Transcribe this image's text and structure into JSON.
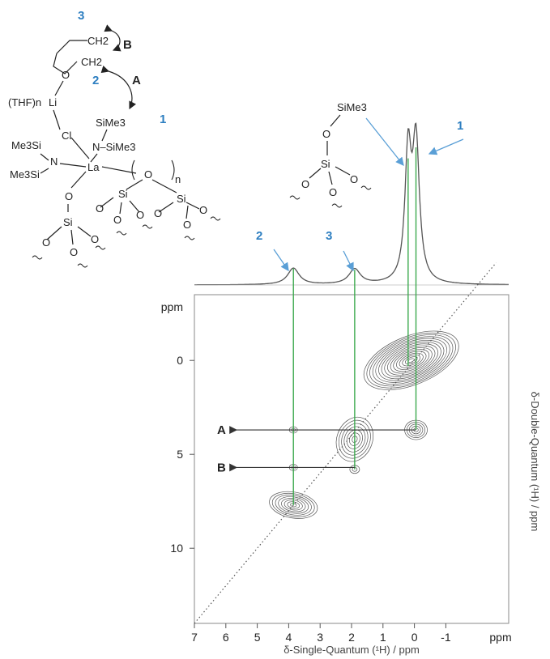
{
  "chart_data": {
    "type": "heatmap",
    "subtype": "2D 1H-1H double-quantum/single-quantum NMR correlation contour plot with projection",
    "xlabel": "δ-Single-Quantum (¹H) / ppm",
    "ylabel": "δ-Double-Quantum (¹H) / ppm",
    "xlim": [
      7,
      -3
    ],
    "ylim": [
      -3.5,
      14
    ],
    "x_ticks": [
      7,
      6,
      5,
      4,
      3,
      2,
      1,
      0,
      -1
    ],
    "x_unit_label": "ppm",
    "y_ticks": [
      0,
      5,
      10
    ],
    "y_unit_label": "ppm",
    "diagonal": "dotted line, slope 2 (DQ = 2 × SQ)",
    "projection_peaks": [
      {
        "label": "2",
        "sq": 3.85,
        "relative_height": 0.12
      },
      {
        "label": "3",
        "sq": 1.9,
        "relative_height": 0.11
      },
      {
        "label": "SiO-SiMe3",
        "sq": 0.2,
        "relative_height": 0.92
      },
      {
        "label": "1",
        "sq": -0.05,
        "relative_height": 1.0
      }
    ],
    "cross_peaks": [
      {
        "label": "A",
        "sq": [
          1.9,
          -0.05
        ],
        "dq": 3.7
      },
      {
        "label": "B",
        "sq": [
          3.85,
          1.9
        ],
        "dq": 5.7
      }
    ],
    "autocorrelation_peaks": [
      {
        "sq": 0.05,
        "dq": 0.1
      },
      {
        "sq": 3.85,
        "dq": 7.7
      }
    ],
    "annotations": [
      "1",
      "2",
      "3",
      "A",
      "B"
    ]
  },
  "colors": {
    "guide": "#3daa4f",
    "arrow_blue": "#5a9fd6",
    "label_blue": "#2e7fc1",
    "contour": "#555555"
  },
  "structure": {
    "labels_blue": [
      "3",
      "2",
      "1"
    ],
    "labels_black": [
      "B",
      "A"
    ],
    "atoms": {
      "thf_ch2_top": "CH2",
      "thf_ch2_bottom": "CH2",
      "thf_o": "O",
      "thf_n": "(THF)n",
      "li": "Li",
      "cl": "Cl",
      "si1": "SiMe3",
      "n1": "N–SiMe3",
      "me3si_top": "Me3Si",
      "me3si_bottom": "Me3Si",
      "n2": "N",
      "la": "La",
      "n_sub": "n",
      "o": "O",
      "si": "Si"
    },
    "inset_si": "SiMe3",
    "inset_o": "O",
    "inset_si_center": "Si"
  }
}
